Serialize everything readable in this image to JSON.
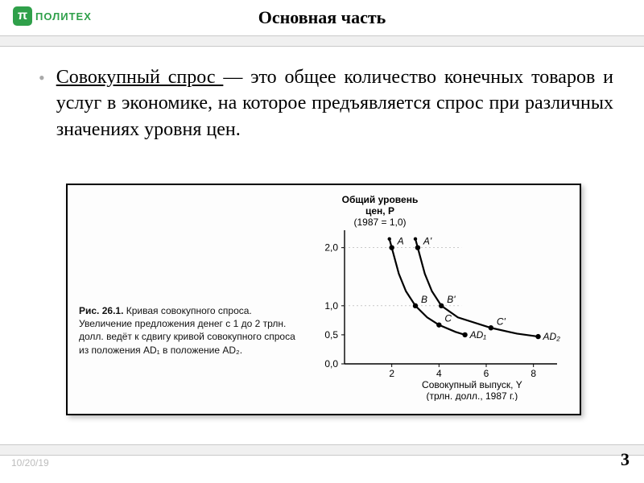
{
  "logo": {
    "badge": "π",
    "text": "ПОЛИТЕХ"
  },
  "title": "Основная часть",
  "term": "Совокупный    спрос   ",
  "para_rest": "—    это    общее количество конечных товаров и услуг в экономике, на которое предъявляется спрос при различных значениях уровня цен.",
  "caption": {
    "fig_label": "Рис. 26.1.",
    "fig_title": " Кривая совокупного спроса.",
    "text": "Увеличение предложения денег с 1 до 2 трлн. долл. ведёт к сдвигу кривой совокупного спроса из положения AD₁ в положение AD₂."
  },
  "chart": {
    "y_title_1": "Общий уровень",
    "y_title_2": "цен, P",
    "y_title_3": "(1987 = 1,0)",
    "x_title_1": "Совокупный выпуск, Y",
    "x_title_2": "(трлн. долл., 1987 г.)",
    "y_ticks": [
      "0,0",
      "0,5",
      "1,0",
      "2,0"
    ],
    "y_tick_vals": [
      0,
      0.5,
      1.0,
      2.0
    ],
    "x_ticks": [
      "2",
      "4",
      "6",
      "8"
    ],
    "x_tick_vals": [
      2,
      4,
      6,
      8
    ],
    "xlim": [
      0,
      9
    ],
    "ylim": [
      0,
      2.3
    ],
    "axis_color": "#000000",
    "tick_font": 12,
    "title_font": 12,
    "curves": [
      {
        "name": "AD1",
        "label": "AD₁",
        "color": "#000000",
        "width": 2.2,
        "points_labeled": [
          {
            "x": 2.0,
            "y": 2.0,
            "label": "A"
          },
          {
            "x": 3.0,
            "y": 1.0,
            "label": "B"
          },
          {
            "x": 4.0,
            "y": 0.67,
            "label": "C"
          }
        ],
        "path": [
          [
            1.9,
            2.15
          ],
          [
            2.0,
            2.0
          ],
          [
            2.3,
            1.55
          ],
          [
            2.6,
            1.25
          ],
          [
            3.0,
            1.0
          ],
          [
            3.5,
            0.8
          ],
          [
            4.0,
            0.67
          ],
          [
            4.7,
            0.55
          ],
          [
            5.1,
            0.5
          ]
        ]
      },
      {
        "name": "AD2",
        "label": "AD₂",
        "color": "#000000",
        "width": 2.2,
        "points_labeled": [
          {
            "x": 3.1,
            "y": 2.0,
            "label": "A'"
          },
          {
            "x": 4.1,
            "y": 1.0,
            "label": "B'"
          },
          {
            "x": 6.2,
            "y": 0.62,
            "label": "C'"
          }
        ],
        "path": [
          [
            3.0,
            2.15
          ],
          [
            3.1,
            2.0
          ],
          [
            3.4,
            1.55
          ],
          [
            3.7,
            1.25
          ],
          [
            4.1,
            1.0
          ],
          [
            4.8,
            0.8
          ],
          [
            6.2,
            0.62
          ],
          [
            7.3,
            0.52
          ],
          [
            8.2,
            0.47
          ]
        ]
      }
    ]
  },
  "date": "10/20/19",
  "page": "3"
}
